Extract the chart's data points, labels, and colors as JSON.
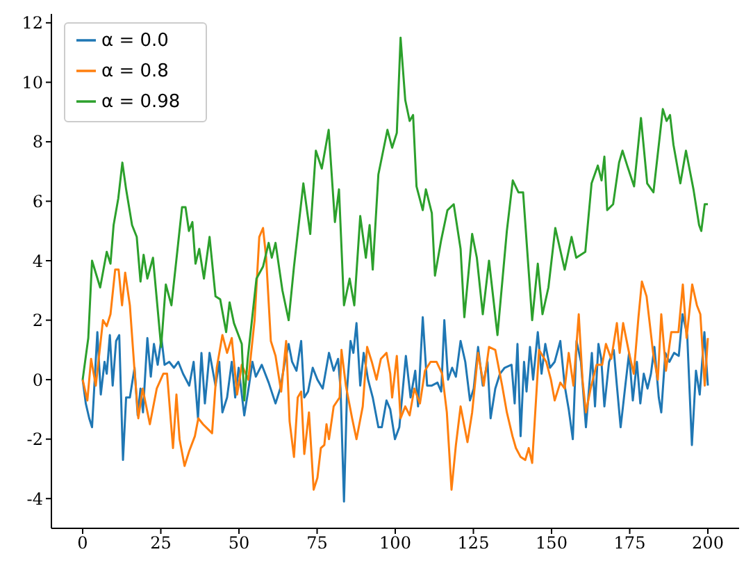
{
  "chart_data": {
    "type": "line",
    "xlim": [
      -10,
      210
    ],
    "xticks": [
      0,
      25,
      50,
      75,
      100,
      125,
      150,
      175,
      200
    ],
    "ylim": [
      -5,
      12.3
    ],
    "yticks": [
      -4,
      -2,
      0,
      2,
      4,
      6,
      8,
      10,
      12
    ],
    "grid": false,
    "legend": "top left",
    "marker": "none",
    "line_style": "solid",
    "series": [
      {
        "name": "α = 0.0",
        "color": "#1f77b4",
        "x": [
          0,
          1,
          2.1,
          3,
          4.7,
          5.8,
          7,
          7.7,
          8.7,
          9.6,
          10.7,
          11.7,
          12.9,
          13.9,
          15.1,
          16.6,
          17.6,
          18.5,
          19.3,
          20.7,
          21.8,
          22.8,
          24,
          25.2,
          26.2,
          27.7,
          29.2,
          30.6,
          32.1,
          34.1,
          35.5,
          36.9,
          38,
          39.1,
          40.6,
          42.5,
          43.7,
          44.7,
          46.2,
          47.7,
          48.8,
          49.9,
          51.7,
          53.2,
          54.3,
          55.4,
          57.3,
          59.5,
          61.7,
          63.2,
          64.7,
          65.9,
          67,
          68.4,
          69.9,
          70.9,
          72.1,
          73.6,
          75.1,
          76.8,
          78.8,
          80.3,
          81.7,
          82.5,
          83.6,
          84.6,
          85.7,
          86.6,
          87.6,
          88.8,
          89.9,
          91.3,
          92.8,
          94.6,
          95.7,
          97.2,
          98.4,
          99.9,
          101.3,
          103.4,
          104.9,
          106.4,
          107.3,
          108.8,
          110.2,
          111.7,
          113.5,
          114.7,
          115.7,
          116.9,
          118.2,
          119.4,
          120.9,
          122.4,
          123.9,
          125.1,
          126.5,
          128,
          129.5,
          130.5,
          132,
          133.5,
          135,
          137.2,
          138.2,
          139.1,
          140.1,
          141.2,
          142,
          143.1,
          144.1,
          145.6,
          146.8,
          148,
          149.5,
          151,
          152.8,
          154.2,
          155.5,
          156.8,
          158,
          159.4,
          161,
          162.9,
          163.9,
          165,
          165.9,
          166.9,
          168.4,
          169.9,
          170.9,
          172.1,
          173.6,
          174.8,
          176,
          177.3,
          178.4,
          179.5,
          180.7,
          181.8,
          182.9,
          184.3,
          185.1,
          186.4,
          187.7,
          189.2,
          190.7,
          191.9,
          193.4,
          194.9,
          196.2,
          197.4,
          198.9,
          200
        ],
        "values": [
          0,
          -0.8,
          -1.3,
          -1.6,
          1.6,
          -0.5,
          0.6,
          0.2,
          1.5,
          -0.2,
          1.3,
          1.5,
          -2.7,
          -0.6,
          -0.6,
          0.4,
          -1.2,
          -0.3,
          -1.1,
          1.4,
          0.1,
          1.2,
          0.5,
          1.4,
          0.5,
          0.6,
          0.4,
          0.6,
          0.2,
          -0.2,
          0.6,
          -1.3,
          0.9,
          -0.8,
          0.9,
          -0.2,
          0.6,
          -1.1,
          -0.6,
          0.6,
          -0.6,
          0.4,
          -1.2,
          -0.2,
          0.6,
          0.1,
          0.5,
          -0.1,
          -0.8,
          -0.3,
          0.6,
          1.2,
          0.6,
          0.3,
          1.3,
          -0.6,
          -0.4,
          0.4,
          0,
          -0.3,
          0.9,
          0.3,
          0.7,
          -0.3,
          -4.1,
          -0.3,
          1.3,
          0.9,
          1.9,
          -0.2,
          0.9,
          0,
          -0.6,
          -1.6,
          -1.6,
          -0.7,
          -1,
          -2,
          -1.6,
          0.8,
          -0.6,
          0.3,
          -0.9,
          2.1,
          -0.2,
          -0.2,
          -0.1,
          -0.4,
          2,
          0,
          0.4,
          0.1,
          1.3,
          0.6,
          -0.7,
          -0.3,
          1.1,
          -0.2,
          0.6,
          -1.3,
          -0.3,
          0.2,
          0.4,
          0.5,
          -0.8,
          1.2,
          -1.9,
          0.6,
          -0.4,
          1.1,
          0,
          1.6,
          0.2,
          1.2,
          0.4,
          0.6,
          1.3,
          -0.2,
          -1,
          -2,
          1.3,
          0.6,
          -1.6,
          0.9,
          -0.9,
          1.2,
          0.7,
          -0.9,
          0.6,
          1,
          -0.2,
          -1.6,
          -0.2,
          0.9,
          -0.7,
          0.6,
          -0.8,
          0.2,
          -0.3,
          0.2,
          1.1,
          -0.6,
          -1.1,
          0.9,
          0.6,
          0.9,
          0.8,
          2.2,
          1.5,
          -2.2,
          0.3,
          -0.5,
          1.6,
          -0.2
        ]
      },
      {
        "name": "α = 0.8",
        "color": "#ff7f0e",
        "x": [
          0,
          1.5,
          2.7,
          4.2,
          6.5,
          7.7,
          8.9,
          10.4,
          11.5,
          12.6,
          13.6,
          15.1,
          16.6,
          17.8,
          19.2,
          21.5,
          23.7,
          25.8,
          27,
          28.9,
          30,
          31,
          32.6,
          34.1,
          35.9,
          37,
          38.5,
          41.4,
          42.9,
          44.7,
          46.2,
          47.7,
          49.4,
          50.9,
          53,
          55,
          56.5,
          57.7,
          58.7,
          60.2,
          61.7,
          63.5,
          65.1,
          66.2,
          67.6,
          68.8,
          69.9,
          70.9,
          72.4,
          73.9,
          75.1,
          76.2,
          77.3,
          78,
          78.8,
          80.3,
          82.2,
          82.8,
          84.2,
          86.2,
          87.6,
          89.6,
          91,
          92.5,
          94,
          95.4,
          97.2,
          98.4,
          99,
          100.5,
          101.7,
          103.2,
          104.6,
          106.1,
          107.9,
          109.5,
          111.3,
          113.2,
          115,
          116.5,
          118,
          119.4,
          120.9,
          123.1,
          124.6,
          126.5,
          128.3,
          130,
          132,
          134.2,
          135.7,
          137.5,
          138.6,
          140.1,
          141.6,
          142.7,
          143.8,
          146,
          148.3,
          149.8,
          151,
          152.8,
          154.2,
          155.5,
          157,
          158.7,
          159.9,
          161,
          162.5,
          164.4,
          166.2,
          167.4,
          169.1,
          170.9,
          171.8,
          172.9,
          174.8,
          176.3,
          177.8,
          178.9,
          180.4,
          182.5,
          184,
          185.1,
          186.6,
          188.3,
          190.6,
          192,
          193.2,
          195,
          196.5,
          197.6,
          199,
          200
        ],
        "values": [
          0,
          -0.7,
          0.7,
          -0.2,
          2,
          1.8,
          2.2,
          3.7,
          3.7,
          2.5,
          3.6,
          2.5,
          0.3,
          -1.3,
          -0.3,
          -1.5,
          -0.3,
          0.2,
          0.2,
          -2.3,
          -0.5,
          -2,
          -2.9,
          -2.4,
          -1.9,
          -1.3,
          -1.5,
          -1.8,
          0.4,
          1.5,
          0.9,
          1.4,
          -0.5,
          0.5,
          0,
          2,
          4.8,
          5.1,
          4.1,
          1.3,
          0.8,
          -0.4,
          1.3,
          -1.4,
          -2.6,
          -0.6,
          -0.4,
          -2.5,
          -1.1,
          -3.7,
          -3.3,
          -2.3,
          -2.2,
          -1.5,
          -2,
          -0.9,
          -0.6,
          1,
          -0.2,
          -1.3,
          -2,
          -0.9,
          1.1,
          0.6,
          0,
          0.7,
          0.9,
          0.2,
          -0.6,
          0.8,
          -1.3,
          -0.9,
          -1.2,
          -0.3,
          -0.8,
          0.3,
          0.6,
          0.6,
          0.2,
          -1.1,
          -3.7,
          -2.2,
          -0.9,
          -2.1,
          -1.1,
          0.9,
          -0.2,
          1.1,
          1,
          -0.2,
          -1.1,
          -1.9,
          -2.3,
          -2.6,
          -2.7,
          -2.3,
          -2.8,
          1,
          0.6,
          0,
          -0.7,
          -0.1,
          -0.3,
          0.9,
          -0.2,
          2.2,
          0,
          -1.1,
          -0.3,
          0.5,
          0.5,
          1.2,
          0.7,
          1.9,
          0.9,
          1.9,
          0.9,
          0.2,
          2.1,
          3.3,
          2.8,
          0.9,
          0,
          2.2,
          0.3,
          1.6,
          1.6,
          3.2,
          1.4,
          3.2,
          2.5,
          2.2,
          -0.2,
          1.4
        ]
      },
      {
        "name": "α = 0.98",
        "color": "#2ca02c",
        "x": [
          0,
          1.8,
          3,
          5.6,
          7.7,
          8.9,
          9.9,
          11.4,
          12.7,
          13.9,
          15.8,
          17.3,
          18.5,
          19.5,
          20.7,
          22.5,
          25.1,
          26.6,
          28.4,
          31.8,
          32.9,
          34,
          35.1,
          36.1,
          37.3,
          38.8,
          40.6,
          42.5,
          44,
          45.9,
          47,
          48.4,
          50.9,
          51.7,
          52.8,
          55.6,
          57.7,
          59.5,
          60.5,
          61.7,
          63.9,
          65.9,
          67.6,
          70.6,
          72.8,
          74.6,
          76.5,
          78.7,
          80.7,
          82,
          83.6,
          85.4,
          86.9,
          88.8,
          90.6,
          91.8,
          92.8,
          94.6,
          97.5,
          99,
          100.5,
          101.7,
          103.2,
          104.6,
          105.7,
          106.8,
          108.8,
          109.8,
          111.7,
          112.7,
          114.7,
          116.7,
          118.7,
          120.9,
          122.1,
          124.6,
          126.1,
          128,
          130,
          132.7,
          135.7,
          137.6,
          139.4,
          140.9,
          143.8,
          145.6,
          147.1,
          149,
          151.2,
          154.2,
          156.4,
          157.9,
          160.8,
          162.8,
          164.8,
          166,
          166.9,
          167.8,
          169.7,
          171.6,
          172.7,
          174.2,
          176.4,
          178.6,
          180.6,
          182.6,
          185.6,
          186.8,
          187.9,
          189,
          191.2,
          193,
          195.4,
          197.2,
          197.9,
          199,
          200
        ],
        "values": [
          0,
          1.4,
          4,
          3.1,
          4.3,
          3.9,
          5.2,
          6.1,
          7.3,
          6.4,
          5.2,
          4.8,
          3.3,
          4.2,
          3.4,
          4.1,
          1.1,
          3.2,
          2.5,
          5.8,
          5.8,
          5,
          5.3,
          3.9,
          4.4,
          3.4,
          4.8,
          2.8,
          2.7,
          1.6,
          2.6,
          1.9,
          1.2,
          -0.7,
          0.7,
          3.4,
          3.8,
          4.6,
          4.1,
          4.6,
          3,
          2,
          3.8,
          6.6,
          4.9,
          7.7,
          7.1,
          8.4,
          5.3,
          6.4,
          2.5,
          3.4,
          2.5,
          5.5,
          4.1,
          5.2,
          3.7,
          6.9,
          8.4,
          7.8,
          8.3,
          11.5,
          9.4,
          8.7,
          8.9,
          6.5,
          5.7,
          6.4,
          5.6,
          3.5,
          4.7,
          5.7,
          5.9,
          4.4,
          2.1,
          4.9,
          4.1,
          2.2,
          4,
          1.5,
          5,
          6.7,
          6.3,
          6.3,
          2,
          3.9,
          2.2,
          3.1,
          5.1,
          3.7,
          4.8,
          4.1,
          4.3,
          6.6,
          7.2,
          6.7,
          7.5,
          5.7,
          5.9,
          7.3,
          7.7,
          7.2,
          6.5,
          8.8,
          6.6,
          6.3,
          9.1,
          8.7,
          8.9,
          7.9,
          6.6,
          7.7,
          6.4,
          5.2,
          5,
          5.9,
          5.9
        ]
      }
    ]
  }
}
